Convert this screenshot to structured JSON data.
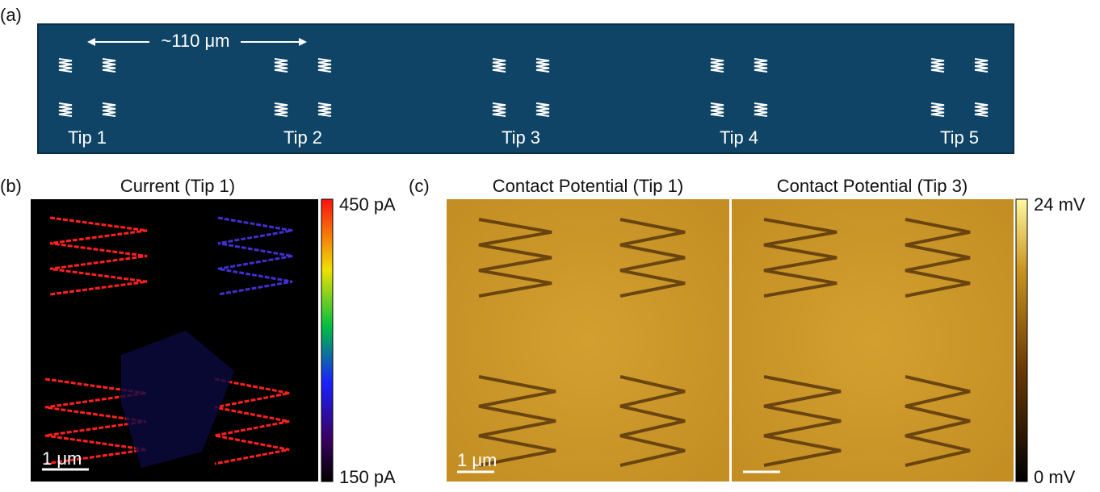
{
  "panels": {
    "a": {
      "label": "(a)",
      "spacing": "~110 μm",
      "tips": [
        "Tip 1",
        "Tip 2",
        "Tip 3",
        "Tip 4",
        "Tip 5"
      ]
    },
    "b": {
      "label": "(b)",
      "title": "Current (Tip 1)",
      "scale_bar": "1 μm",
      "colorbar": {
        "max": "450 pA",
        "min": "150 pA"
      }
    },
    "c": {
      "label": "(c)",
      "titles": [
        "Contact Potential (Tip 1)",
        "Contact Potential (Tip 3)"
      ],
      "scale_bar": "1 μm",
      "colorbar": {
        "max": "24 mV",
        "min": "0 mV"
      }
    }
  }
}
